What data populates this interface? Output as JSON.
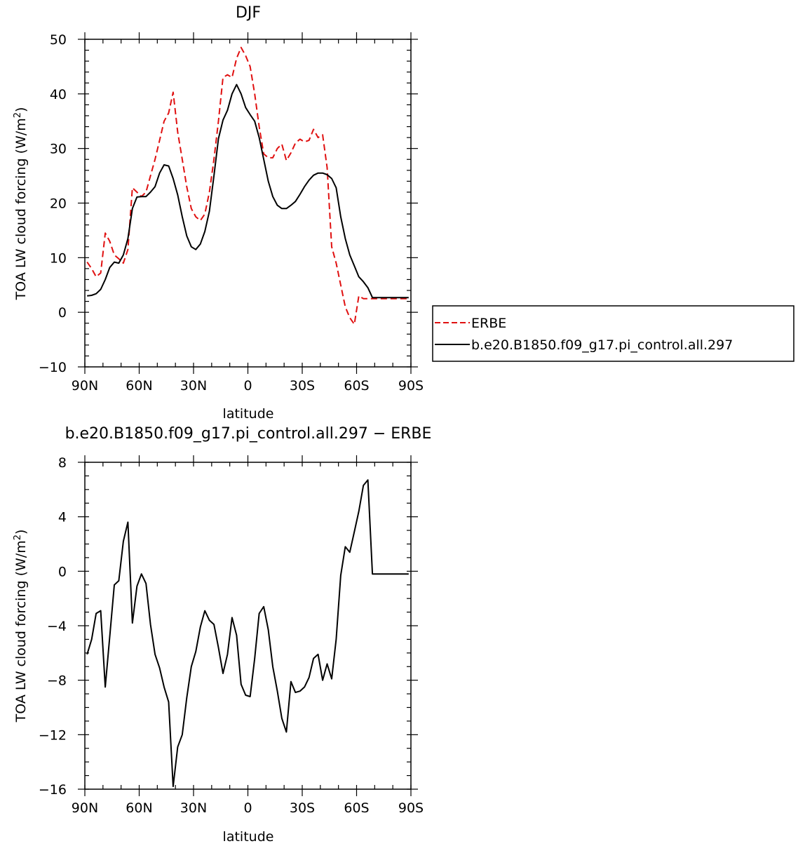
{
  "chart_data": [
    {
      "type": "line",
      "title": "DJF",
      "xlabel": "latitude",
      "ylabel": "TOA LW cloud forcing (W/m",
      "ylabel_sup": "2",
      "ylabel_close": ")",
      "xlim": [
        -90,
        90
      ],
      "ylim": [
        -10,
        50
      ],
      "xticks": [
        {
          "value": -90,
          "label": "90N"
        },
        {
          "value": -60,
          "label": "60N"
        },
        {
          "value": -30,
          "label": "30N"
        },
        {
          "value": 0,
          "label": "0"
        },
        {
          "value": 30,
          "label": "30S"
        },
        {
          "value": 60,
          "label": "60S"
        },
        {
          "value": 90,
          "label": "90S"
        }
      ],
      "yticks": [
        -10,
        0,
        10,
        20,
        30,
        40,
        50
      ],
      "yminor_step": 2,
      "xminor_step": 10,
      "legend_position": "right",
      "series": [
        {
          "name": "ERBE",
          "color": "#e01010",
          "style": "dashed",
          "x": [
            -88.75,
            -86.25,
            -83.75,
            -81.25,
            -78.75,
            -76.25,
            -73.75,
            -71.25,
            -68.75,
            -66.25,
            -63.75,
            -61.25,
            -58.75,
            -56.25,
            -53.75,
            -51.25,
            -48.75,
            -46.25,
            -43.75,
            -41.25,
            -38.75,
            -36.25,
            -33.75,
            -31.25,
            -28.75,
            -26.25,
            -23.75,
            -21.25,
            -18.75,
            -16.25,
            -13.75,
            -11.25,
            -8.75,
            -6.25,
            -3.75,
            -1.25,
            1.25,
            3.75,
            6.25,
            8.75,
            11.25,
            13.75,
            16.25,
            18.75,
            21.25,
            23.75,
            26.25,
            28.75,
            31.25,
            33.75,
            36.25,
            38.75,
            41.25,
            43.75,
            46.25,
            48.75,
            51.25,
            53.75,
            56.25,
            58.75,
            61.25,
            63.75,
            66.25,
            68.75,
            71.25,
            73.75,
            76.25,
            78.75,
            81.25,
            83.75,
            86.25,
            88.75
          ],
          "y": [
            9.2,
            8.0,
            6.5,
            7.2,
            14.5,
            13.0,
            10.5,
            9.8,
            9.0,
            11.5,
            22.8,
            22.0,
            21.2,
            22.0,
            25.0,
            28.0,
            31.5,
            35.0,
            36.5,
            40.3,
            33.0,
            28.0,
            23.0,
            19.0,
            17.5,
            16.8,
            18.0,
            22.0,
            28.0,
            35.0,
            43.0,
            43.5,
            43.0,
            46.5,
            48.5,
            47.0,
            45.0,
            40.0,
            34.0,
            29.0,
            28.3,
            28.3,
            30.0,
            30.8,
            27.8,
            29.2,
            31.0,
            31.7,
            31.2,
            31.5,
            33.5,
            32.0,
            32.5,
            26.5,
            12.0,
            9.0,
            5.0,
            1.0,
            -1.0,
            -2.2,
            3.0,
            2.5,
            2.5,
            2.5,
            2.5,
            2.5,
            2.5,
            2.5,
            2.5,
            2.5,
            2.5,
            2.5
          ]
        },
        {
          "name": "b.e20.B1850.f09_g17.pi_control.all.297",
          "color": "#000000",
          "style": "solid",
          "x": [
            -88.75,
            -86.25,
            -83.75,
            -81.25,
            -78.75,
            -76.25,
            -73.75,
            -71.25,
            -68.75,
            -66.25,
            -63.75,
            -61.25,
            -58.75,
            -56.25,
            -53.75,
            -51.25,
            -48.75,
            -46.25,
            -43.75,
            -41.25,
            -38.75,
            -36.25,
            -33.75,
            -31.25,
            -28.75,
            -26.25,
            -23.75,
            -21.25,
            -18.75,
            -16.25,
            -13.75,
            -11.25,
            -8.75,
            -6.25,
            -3.75,
            -1.25,
            1.25,
            3.75,
            6.25,
            8.75,
            11.25,
            13.75,
            16.25,
            18.75,
            21.25,
            23.75,
            26.25,
            28.75,
            31.25,
            33.75,
            36.25,
            38.75,
            41.25,
            43.75,
            46.25,
            48.75,
            51.25,
            53.75,
            56.25,
            58.75,
            61.25,
            63.75,
            66.25,
            68.75,
            71.25,
            73.75,
            76.25,
            78.75,
            81.25,
            83.75,
            86.25,
            88.75
          ],
          "y": [
            3.0,
            3.1,
            3.4,
            4.2,
            6.0,
            8.2,
            9.2,
            9.0,
            10.5,
            13.5,
            19.0,
            21.1,
            21.2,
            21.2,
            22.0,
            23.0,
            25.5,
            27.0,
            26.8,
            24.5,
            21.5,
            17.5,
            14.0,
            12.0,
            11.5,
            12.5,
            14.8,
            18.5,
            25.0,
            31.8,
            35.2,
            37.0,
            40.0,
            41.7,
            40.0,
            37.5,
            36.2,
            35.0,
            32.0,
            28.0,
            24.0,
            21.2,
            19.6,
            19.0,
            19.0,
            19.6,
            20.3,
            21.6,
            23.0,
            24.2,
            25.1,
            25.5,
            25.5,
            25.2,
            24.5,
            22.8,
            17.5,
            13.5,
            10.5,
            8.5,
            6.5,
            5.6,
            4.5,
            2.7,
            2.7,
            2.7,
            2.7,
            2.7,
            2.7,
            2.7,
            2.7,
            2.7
          ]
        }
      ]
    },
    {
      "type": "line",
      "title": "b.e20.B1850.f09_g17.pi_control.all.297 − ERBE",
      "xlabel": "latitude",
      "ylabel": "TOA LW cloud forcing (W/m",
      "ylabel_sup": "2",
      "ylabel_close": ")",
      "xlim": [
        -90,
        90
      ],
      "ylim": [
        -16,
        8
      ],
      "xticks": [
        {
          "value": -90,
          "label": "90N"
        },
        {
          "value": -60,
          "label": "60N"
        },
        {
          "value": -30,
          "label": "30N"
        },
        {
          "value": 0,
          "label": "0"
        },
        {
          "value": 30,
          "label": "30S"
        },
        {
          "value": 60,
          "label": "60S"
        },
        {
          "value": 90,
          "label": "90S"
        }
      ],
      "yticks": [
        -16,
        -12,
        -8,
        -4,
        0,
        4,
        8
      ],
      "yminor_step": 1,
      "xminor_step": 10,
      "series": [
        {
          "name": "",
          "color": "#000000",
          "style": "solid",
          "x": [
            -88.75,
            -86.25,
            -83.75,
            -81.25,
            -78.75,
            -76.25,
            -73.75,
            -71.25,
            -68.75,
            -66.25,
            -63.75,
            -61.25,
            -58.75,
            -56.25,
            -53.75,
            -51.25,
            -48.75,
            -46.25,
            -43.75,
            -41.25,
            -38.75,
            -36.25,
            -33.75,
            -31.25,
            -28.75,
            -26.25,
            -23.75,
            -21.25,
            -18.75,
            -16.25,
            -13.75,
            -11.25,
            -8.75,
            -6.25,
            -3.75,
            -1.25,
            1.25,
            3.75,
            6.25,
            8.75,
            11.25,
            13.75,
            16.25,
            18.75,
            21.25,
            23.75,
            26.25,
            28.75,
            31.25,
            33.75,
            36.25,
            38.75,
            41.25,
            43.75,
            46.25,
            48.75,
            51.25,
            53.75,
            56.25,
            58.75,
            61.25,
            63.75,
            66.25,
            68.75,
            71.25,
            73.75,
            76.25,
            78.75,
            81.25,
            83.75,
            86.25,
            88.75
          ],
          "y": [
            -6.1,
            -5.0,
            -3.1,
            -2.9,
            -8.5,
            -4.8,
            -1.0,
            -0.7,
            2.2,
            3.6,
            -3.8,
            -1.1,
            -0.2,
            -0.9,
            -3.9,
            -6.1,
            -7.1,
            -8.5,
            -9.6,
            -15.8,
            -12.9,
            -12.0,
            -9.3,
            -7.0,
            -5.9,
            -4.1,
            -2.9,
            -3.6,
            -3.9,
            -5.6,
            -7.5,
            -6.1,
            -3.4,
            -4.7,
            -8.3,
            -9.1,
            -9.2,
            -6.4,
            -3.1,
            -2.6,
            -4.3,
            -7.0,
            -8.8,
            -10.8,
            -11.8,
            -8.1,
            -8.9,
            -8.8,
            -8.5,
            -7.8,
            -6.4,
            -6.1,
            -8.0,
            -6.8,
            -7.9,
            -5.0,
            -0.3,
            1.8,
            1.4,
            2.9,
            4.4,
            6.3,
            6.7,
            -0.2,
            -0.2,
            -0.2,
            -0.2,
            -0.2,
            -0.2,
            -0.2,
            -0.2,
            -0.2
          ]
        }
      ]
    }
  ]
}
